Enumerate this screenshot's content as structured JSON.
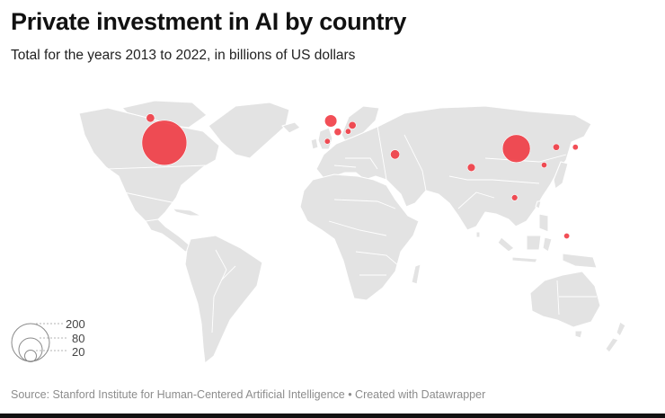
{
  "header": {
    "title": "Private investment in AI by country",
    "subtitle": "Total for the years 2013 to 2022, in billions of US dollars"
  },
  "legend": {
    "labels": [
      "200",
      "80",
      "20"
    ]
  },
  "footer": {
    "source": "Source: Stanford Institute for Human-Centered Artificial Intelligence • Created with Datawrapper"
  },
  "colors": {
    "land": "#e3e3e3",
    "bubble": "#f0303a",
    "background": "#ffffff"
  },
  "map_data": {
    "type": "proportional-symbol-map",
    "projection": "robinson",
    "bubbles": [
      {
        "lon": -98,
        "lat": 39,
        "value": 248.9
      },
      {
        "lon": 105,
        "lat": 35,
        "value": 95.1
      },
      {
        "lon": -2,
        "lat": 54,
        "value": 18.2
      },
      {
        "lon": -106,
        "lat": 56,
        "value": 8.8
      },
      {
        "lon": 79,
        "lat": 22,
        "value": 7.7
      },
      {
        "lon": 35,
        "lat": 31,
        "value": 10.8
      },
      {
        "lon": 10.4,
        "lat": 51,
        "value": 7.0
      },
      {
        "lon": 2,
        "lat": 46.5,
        "value": 6.6
      },
      {
        "lon": 128,
        "lat": 36,
        "value": 5.6
      },
      {
        "lon": 139,
        "lat": 36,
        "value": 4.0
      },
      {
        "lon": 104,
        "lat": 1.3,
        "value": 4.7
      },
      {
        "lon": 8,
        "lat": 46.8,
        "value": 3.0
      },
      {
        "lon": 121,
        "lat": 23.7,
        "value": 2.4
      },
      {
        "lon": 134,
        "lat": -25,
        "value": 2.4
      },
      {
        "lon": -4,
        "lat": 40,
        "value": 1.5
      }
    ]
  }
}
